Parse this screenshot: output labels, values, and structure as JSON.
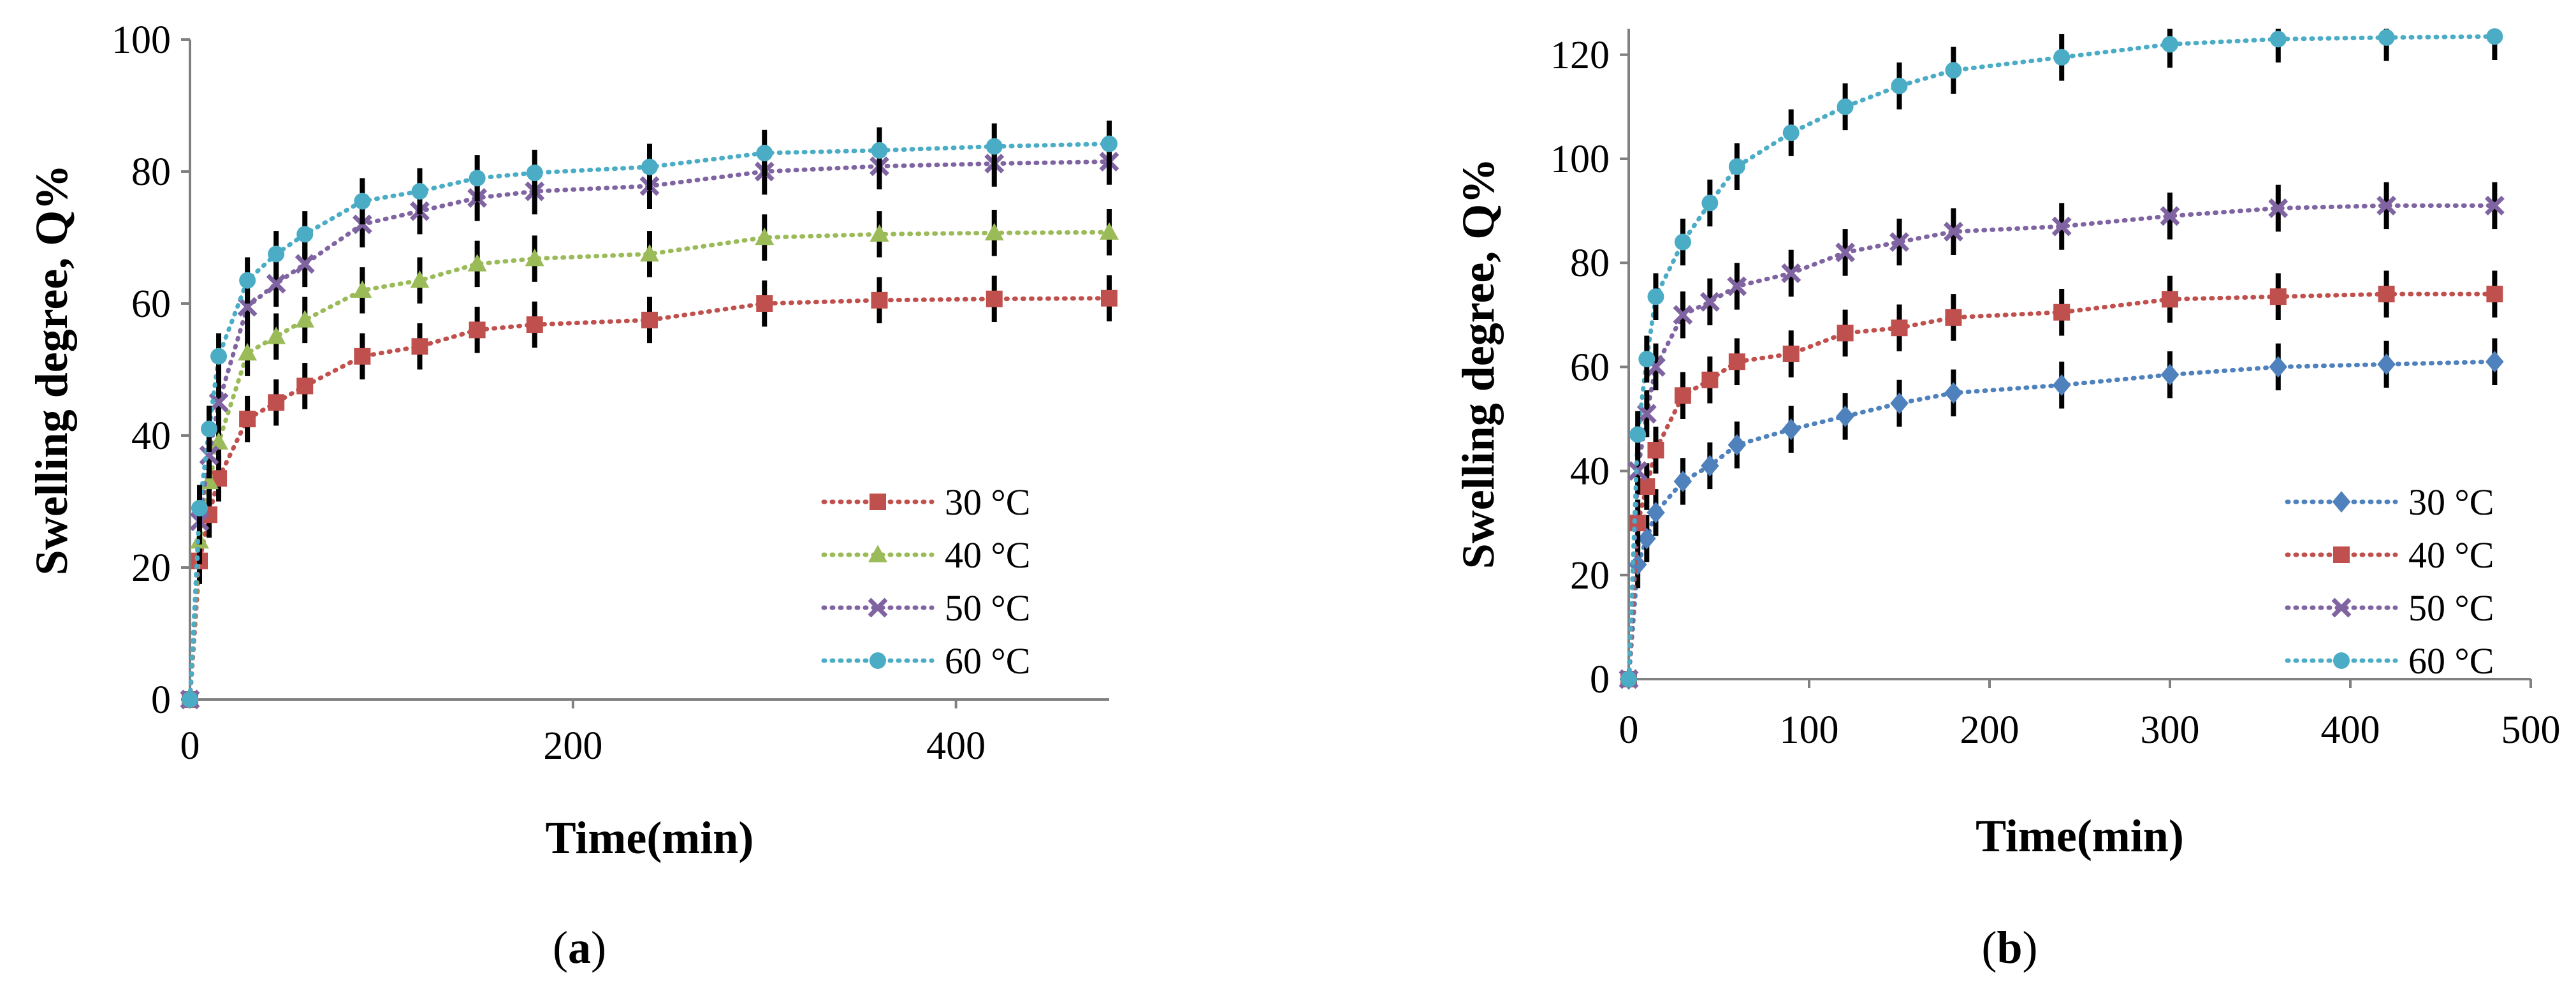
{
  "chart_data": [
    {
      "type": "line",
      "panel_label": "a",
      "xlabel": "Time(min)",
      "ylabel": "Swelling degree, Q%",
      "xlim": [
        0,
        480
      ],
      "ylim": [
        0,
        100
      ],
      "xticks": [
        0,
        200,
        400
      ],
      "yticks": [
        0,
        20,
        40,
        60,
        80,
        100
      ],
      "legend_position": "bottom-right",
      "error_bar": 3.5,
      "x": [
        0,
        5,
        10,
        15,
        30,
        45,
        60,
        90,
        120,
        150,
        180,
        240,
        300,
        360,
        420,
        480
      ],
      "series": [
        {
          "name": "30 °C",
          "color": "#c0504d",
          "marker": "square",
          "values": [
            0,
            21,
            28,
            33.5,
            42.5,
            45,
            47.5,
            52,
            53.5,
            56,
            56.8,
            57.5,
            60,
            60.5,
            60.7,
            60.8
          ]
        },
        {
          "name": "40 °C",
          "color": "#9bbb59",
          "marker": "triangle",
          "values": [
            0,
            24,
            33,
            39,
            52.5,
            55,
            57.5,
            62,
            63.5,
            66,
            66.8,
            67.5,
            70,
            70.5,
            70.7,
            70.8
          ]
        },
        {
          "name": "50 °C",
          "color": "#8064a2",
          "marker": "x",
          "values": [
            0,
            27,
            37,
            45,
            59.5,
            63,
            66,
            72,
            74,
            76,
            77,
            77.8,
            80,
            80.8,
            81.2,
            81.5
          ]
        },
        {
          "name": "60 °C",
          "color": "#4bacc6",
          "marker": "circle",
          "values": [
            0,
            29,
            41,
            52,
            63.5,
            67.5,
            70.5,
            75.5,
            77,
            79,
            79.8,
            80.7,
            82.8,
            83.2,
            83.8,
            84.2
          ]
        }
      ]
    },
    {
      "type": "line",
      "panel_label": "b",
      "xlabel": "Time(min)",
      "ylabel": "Swelling degree, Q%",
      "xlim": [
        0,
        500
      ],
      "ylim": [
        0,
        125
      ],
      "xticks": [
        0,
        100,
        200,
        300,
        400,
        500
      ],
      "yticks": [
        0,
        20,
        40,
        60,
        80,
        100,
        120
      ],
      "legend_position": "bottom-right",
      "error_bar": 4.5,
      "x": [
        0,
        5,
        10,
        15,
        30,
        45,
        60,
        90,
        120,
        150,
        180,
        240,
        300,
        360,
        420,
        480
      ],
      "series": [
        {
          "name": "30 °C",
          "color": "#4f81bd",
          "marker": "diamond",
          "values": [
            0,
            22,
            27,
            32,
            38,
            41,
            45,
            48,
            50.5,
            53,
            55,
            56.5,
            58.5,
            60,
            60.5,
            61
          ]
        },
        {
          "name": "40 °C",
          "color": "#c0504d",
          "marker": "square",
          "values": [
            0,
            30,
            37,
            44,
            54.5,
            57.5,
            61,
            62.5,
            66.5,
            67.5,
            69.5,
            70.5,
            73,
            73.5,
            74,
            74
          ]
        },
        {
          "name": "50 °C",
          "color": "#8064a2",
          "marker": "x",
          "values": [
            0,
            40,
            51,
            60,
            70,
            72.5,
            75.5,
            78,
            82,
            84,
            86,
            87,
            89,
            90.5,
            91,
            91
          ]
        },
        {
          "name": "60 °C",
          "color": "#4bacc6",
          "marker": "circle",
          "values": [
            0,
            47,
            61.5,
            73.5,
            84,
            91.5,
            98.5,
            105,
            110,
            114,
            117,
            119.5,
            122,
            123,
            123.3,
            123.5
          ]
        }
      ]
    }
  ]
}
